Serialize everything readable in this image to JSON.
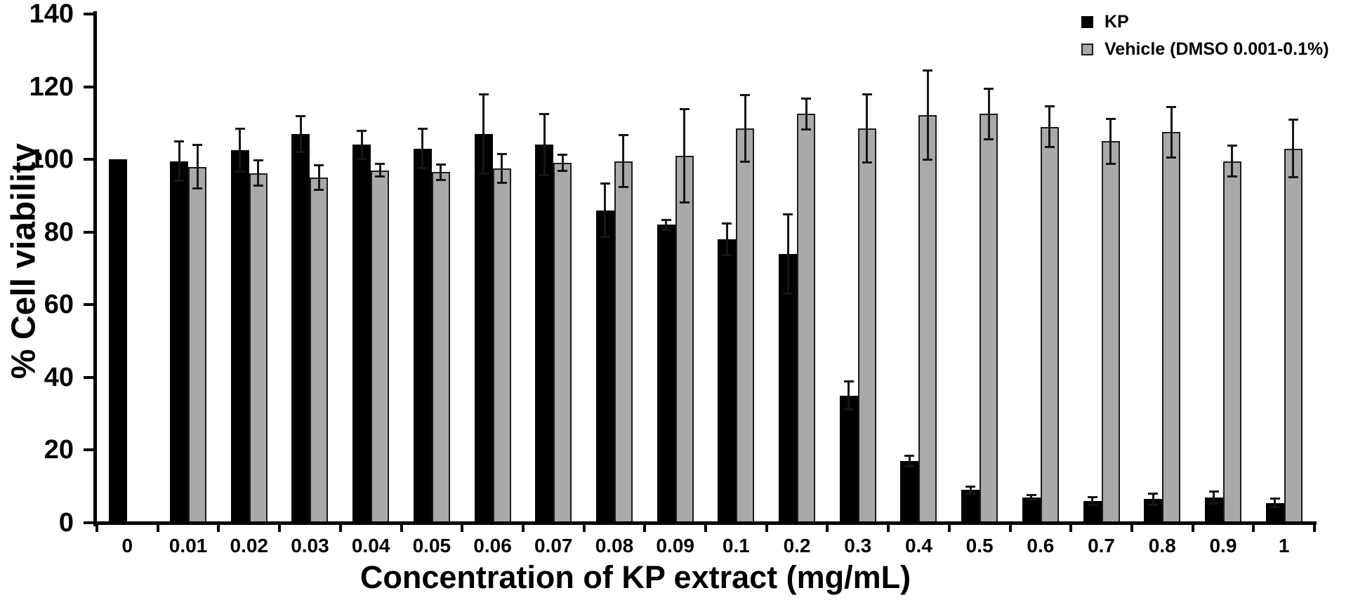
{
  "figure": {
    "background": "#ffffff"
  },
  "legend": {
    "position": "top-right",
    "items": [
      {
        "label": "KP",
        "color": "#000000",
        "border": "#000000"
      },
      {
        "label": "Vehicle (DMSO 0.001-0.1%)",
        "color": "#a9a9a9",
        "border": "#1d1d1d"
      }
    ]
  },
  "chart_data": {
    "type": "bar",
    "title": "",
    "xlabel": "Concentration of KP extract (mg/mL)",
    "ylabel": "% Cell viability",
    "ylim": [
      0,
      140
    ],
    "yticks": [
      0,
      20,
      40,
      60,
      80,
      100,
      120,
      140
    ],
    "grid": false,
    "legend_position": "top-right",
    "error_bars": true,
    "categories": [
      "0",
      "0.01",
      "0.02",
      "0.03",
      "0.04",
      "0.05",
      "0.06",
      "0.07",
      "0.08",
      "0.09",
      "0.1",
      "0.2",
      "0.3",
      "0.4",
      "0.5",
      "0.6",
      "0.7",
      "0.8",
      "0.9",
      "1"
    ],
    "series": [
      {
        "name": "KP",
        "color": "#000000",
        "border": "#000000",
        "values": [
          100,
          99.5,
          102.5,
          107,
          104,
          103,
          107,
          104,
          86,
          82,
          78,
          74,
          35,
          17,
          9,
          7,
          6,
          6.5,
          7,
          5.5
        ],
        "errors": [
          0,
          5.5,
          6,
          5,
          4,
          5.5,
          11,
          8.5,
          7.5,
          1.5,
          4.5,
          11,
          4,
          1.5,
          1,
          0.7,
          1.2,
          1.7,
          1.7,
          1.2
        ]
      },
      {
        "name": "Vehicle (DMSO 0.001-0.1%)",
        "color": "#a9a9a9",
        "border": "#1d1d1d",
        "values": [
          null,
          98,
          96.2,
          95,
          97,
          96.5,
          97.5,
          99,
          99.5,
          101,
          108.5,
          112.5,
          108.5,
          112.2,
          112.5,
          109,
          105,
          107.5,
          99.5,
          103
        ],
        "errors": [
          null,
          6,
          3.6,
          3.5,
          1.8,
          2.2,
          4,
          2.3,
          7.2,
          13,
          9.3,
          4.3,
          9.5,
          12.3,
          7,
          5.7,
          6.3,
          7,
          4.3,
          8
        ]
      }
    ]
  }
}
